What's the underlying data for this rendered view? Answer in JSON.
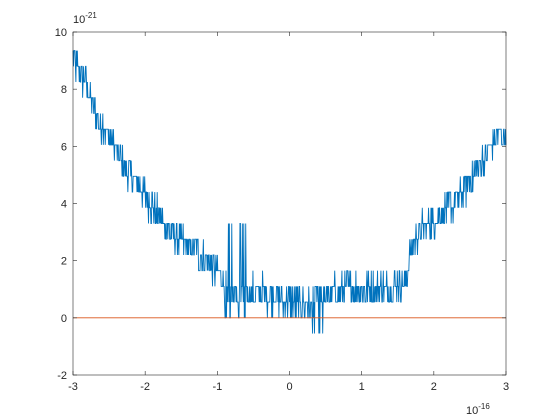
{
  "chart_data": {
    "type": "line",
    "title": "",
    "xlabel": "",
    "ylabel": "",
    "x_exponent_label": "10",
    "x_exponent_power": "-16",
    "y_exponent_label": "10",
    "y_exponent_power": "-21",
    "xlim": [
      -3,
      3
    ],
    "ylim": [
      -2,
      10
    ],
    "x_ticks": [
      -3,
      -2,
      -1,
      0,
      1,
      2,
      3
    ],
    "y_ticks": [
      -2,
      0,
      2,
      4,
      6,
      8,
      10
    ],
    "x_tick_labels": [
      "-3",
      "-2",
      "-1",
      "0",
      "1",
      "2",
      "3"
    ],
    "y_tick_labels": [
      "-2",
      "0",
      "2",
      "4",
      "6",
      "8",
      "10"
    ],
    "grid": false,
    "legend": "none",
    "series": [
      {
        "color": "#0072BD",
        "x": [
          -3.0,
          -2.9,
          -2.8,
          -2.7,
          -2.6,
          -2.5,
          -2.4,
          -2.3,
          -2.2,
          -2.1,
          -2.0,
          -1.9,
          -1.8,
          -1.7,
          -1.6,
          -1.5,
          -1.4,
          -1.3,
          -1.2,
          -1.1,
          -1.0,
          -0.9,
          -0.85,
          -0.8,
          -0.7,
          -0.6,
          -0.5,
          -0.4,
          -0.3,
          -0.2,
          -0.1,
          0.0,
          0.1,
          0.2,
          0.3,
          0.35,
          0.4,
          0.5,
          0.6,
          0.7,
          0.8,
          0.9,
          1.0,
          1.1,
          1.2,
          1.3,
          1.4,
          1.5,
          1.6,
          1.7,
          1.8,
          1.9,
          2.0,
          2.1,
          2.2,
          2.3,
          2.4,
          2.5,
          2.6,
          2.7,
          2.8,
          2.9,
          3.0
        ],
        "y": [
          9.0,
          8.6,
          8.0,
          7.3,
          6.8,
          6.3,
          5.9,
          5.4,
          5.0,
          4.6,
          4.3,
          3.9,
          3.5,
          3.2,
          2.9,
          2.7,
          2.5,
          2.3,
          2.1,
          1.9,
          1.6,
          1.3,
          1.0,
          0.9,
          0.8,
          1.0,
          0.9,
          0.9,
          0.8,
          0.8,
          0.6,
          0.6,
          0.5,
          0.5,
          0.4,
          0.6,
          0.8,
          0.8,
          0.9,
          0.9,
          1.0,
          1.0,
          1.0,
          1.0,
          1.0,
          1.0,
          1.1,
          1.2,
          1.2,
          2.6,
          3.0,
          3.2,
          3.4,
          3.6,
          3.8,
          4.1,
          4.4,
          4.8,
          5.2,
          5.6,
          6.0,
          6.4,
          6.4
        ],
        "noise_amplitude": 0.55
      },
      {
        "color": "#D95319",
        "x": [
          -3,
          3
        ],
        "y": [
          0,
          0
        ]
      }
    ]
  }
}
